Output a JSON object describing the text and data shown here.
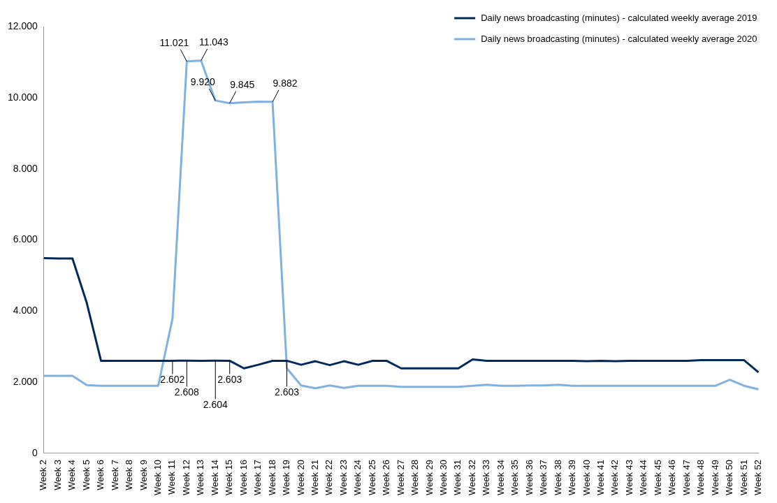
{
  "chart_data": {
    "type": "line",
    "categories": [
      "Week 2",
      "Week 3",
      "Week 4",
      "Week 5",
      "Week 6",
      "Week 7",
      "Week 8",
      "Week 9",
      "Week 10",
      "Week 11",
      "Week 12",
      "Week 13",
      "Week 14",
      "Week 15",
      "Week 16",
      "Week 17",
      "Week 18",
      "Week 19",
      "Week 20",
      "Week 21",
      "Week 22",
      "Week 23",
      "Week 24",
      "Week 25",
      "Week 26",
      "Week 27",
      "Week 28",
      "Week 29",
      "Week 30",
      "Week 31",
      "Week 32",
      "Week 33",
      "Week 34",
      "Week 35",
      "Week 36",
      "Week 37",
      "Week 38",
      "Week 39",
      "Week 40",
      "Week 41",
      "Week 42",
      "Week 43",
      "Week 44",
      "Week 45",
      "Week 46",
      "Week 47",
      "Week 48",
      "Week 49",
      "Week 50",
      "Week 51",
      "Week 52"
    ],
    "series": [
      {
        "name": "Daily news broadcasting (minutes) - calculated weekly average 2019",
        "color": "#002a5c",
        "values": [
          5490,
          5480,
          5480,
          4230,
          2600,
          2600,
          2600,
          2600,
          2600,
          2602,
          2608,
          2600,
          2604,
          2603,
          2390,
          2490,
          2600,
          2603,
          2490,
          2590,
          2480,
          2590,
          2490,
          2600,
          2600,
          2390,
          2390,
          2390,
          2390,
          2390,
          2640,
          2600,
          2600,
          2600,
          2600,
          2600,
          2600,
          2600,
          2590,
          2600,
          2590,
          2600,
          2600,
          2600,
          2600,
          2600,
          2620,
          2620,
          2620,
          2620,
          2280
        ],
        "value_labels": [
          null,
          null,
          null,
          null,
          null,
          null,
          null,
          null,
          null,
          "2.602",
          "2.608",
          null,
          "2.604",
          "2.603",
          null,
          null,
          null,
          "2.603",
          null,
          null,
          null,
          null,
          null,
          null,
          null,
          null,
          null,
          null,
          null,
          null,
          null,
          null,
          null,
          null,
          null,
          null,
          null,
          null,
          null,
          null,
          null,
          null,
          null,
          null,
          null,
          null,
          null,
          null,
          null,
          null,
          null
        ]
      },
      {
        "name": "Daily news broadcasting (minutes) - calculated weekly average 2020",
        "color": "#7fb2e0",
        "values": [
          2180,
          2180,
          2180,
          1920,
          1900,
          1900,
          1900,
          1900,
          1900,
          3790,
          11021,
          11043,
          9920,
          9845,
          9870,
          9890,
          9882,
          2390,
          1910,
          1830,
          1910,
          1840,
          1900,
          1900,
          1900,
          1870,
          1870,
          1870,
          1870,
          1870,
          1900,
          1930,
          1900,
          1900,
          1910,
          1910,
          1930,
          1900,
          1900,
          1900,
          1900,
          1900,
          1900,
          1900,
          1900,
          1900,
          1900,
          1900,
          2070,
          1900,
          1800
        ],
        "value_labels": [
          null,
          null,
          null,
          null,
          null,
          null,
          null,
          null,
          null,
          null,
          "11.021",
          "11.043",
          "9.920",
          "9.845",
          null,
          null,
          "9.882",
          null,
          null,
          null,
          null,
          null,
          null,
          null,
          null,
          null,
          null,
          null,
          null,
          null,
          null,
          null,
          null,
          null,
          null,
          null,
          null,
          null,
          null,
          null,
          null,
          null,
          null,
          null,
          null,
          null,
          null,
          null,
          null,
          null,
          null
        ]
      }
    ],
    "ylim": [
      0,
      12000
    ],
    "yticks": [
      {
        "value": 0,
        "label": "0"
      },
      {
        "value": 2000,
        "label": "2.000"
      },
      {
        "value": 4000,
        "label": "4.000"
      },
      {
        "value": 6000,
        "label": "6.000"
      },
      {
        "value": 8000,
        "label": "8.000"
      },
      {
        "value": 10000,
        "label": "10.000"
      },
      {
        "value": 12000,
        "label": "12.000"
      }
    ],
    "grid": false,
    "legend": "top right",
    "marker": "none",
    "line_style": "solid"
  }
}
